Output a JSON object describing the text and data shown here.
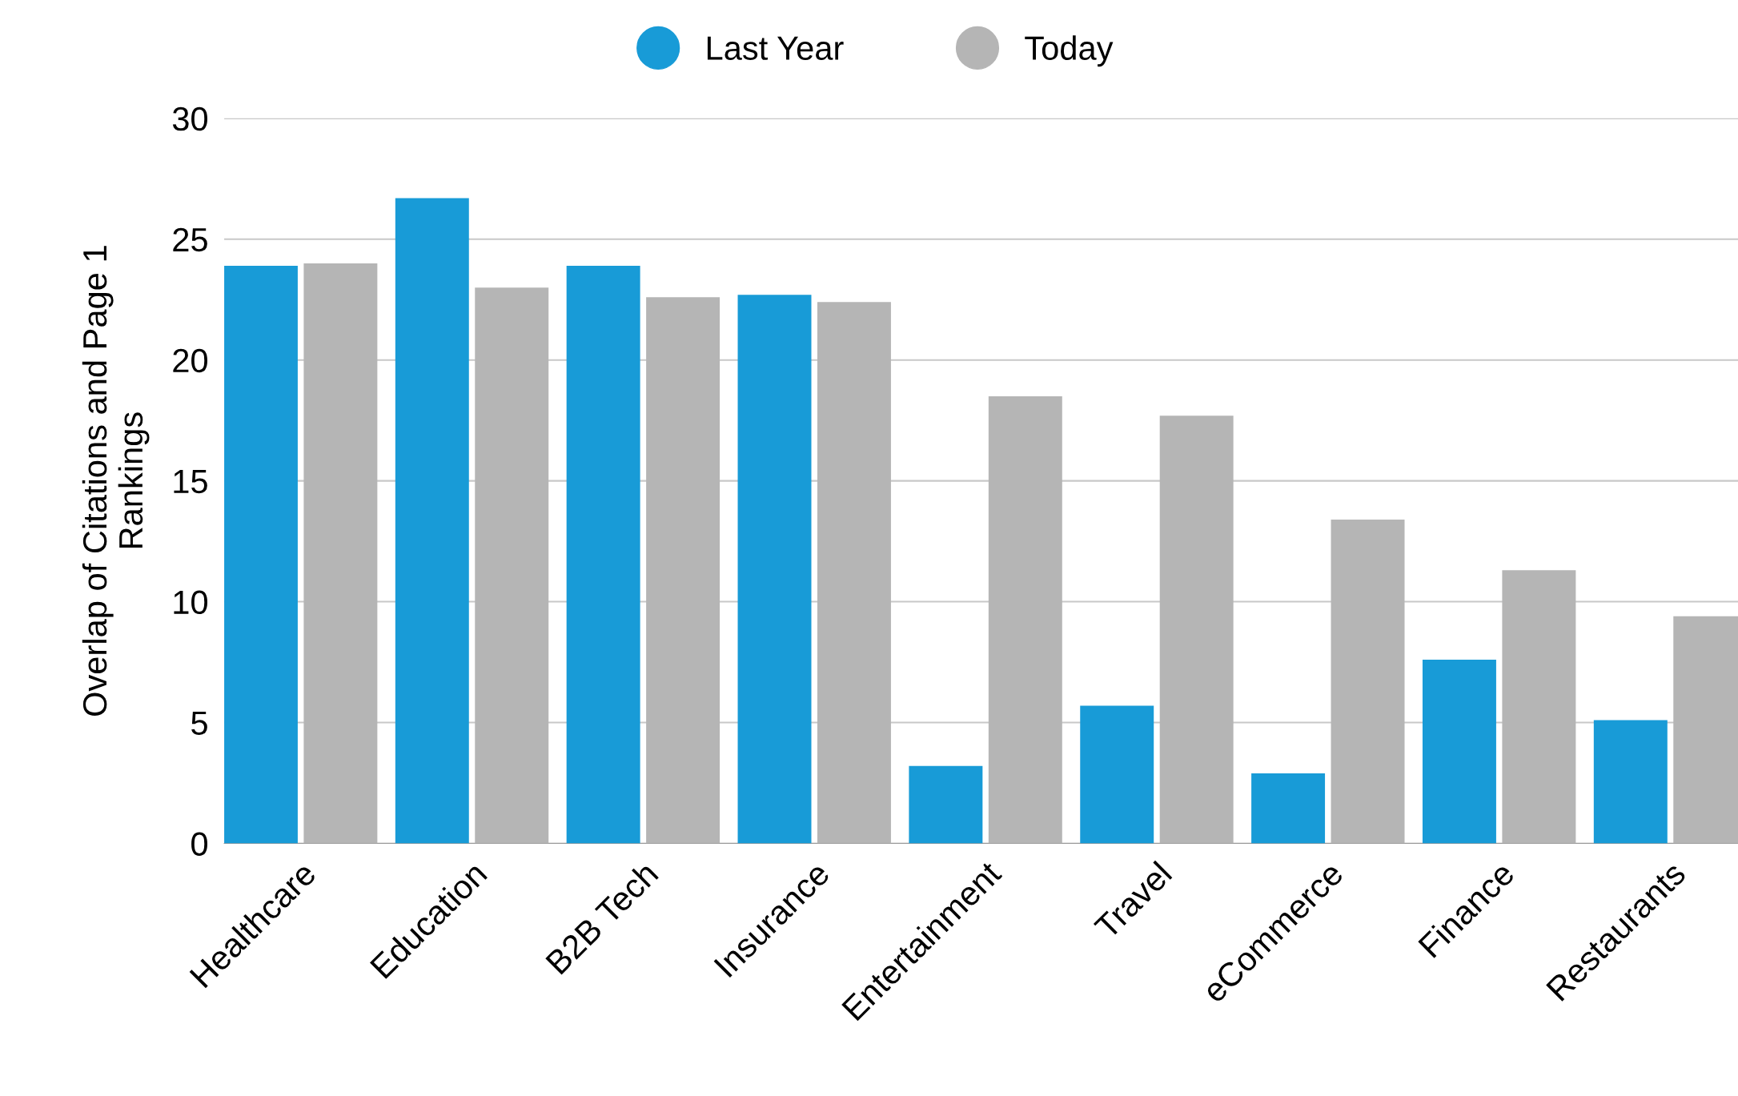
{
  "chart_data": {
    "type": "bar",
    "ylabel": "Overlap of Citations and Page 1\nRankings",
    "categories": [
      "Healthcare",
      "Education",
      "B2B Tech",
      "Insurance",
      "Entertainment",
      "Travel",
      "eCommerce",
      "Finance",
      "Restaurants"
    ],
    "series": [
      {
        "name": "Last Year",
        "color": "#189bd7",
        "values": [
          23.9,
          26.7,
          23.9,
          22.7,
          3.2,
          5.7,
          2.9,
          7.6,
          5.1
        ]
      },
      {
        "name": "Today",
        "color": "#b5b5b5",
        "values": [
          24.0,
          23.0,
          22.6,
          22.4,
          18.5,
          17.7,
          13.4,
          11.3,
          9.4
        ]
      }
    ],
    "ylim": [
      0,
      30
    ],
    "yticks": [
      0,
      5,
      10,
      15,
      20,
      25,
      30
    ],
    "grid": "y",
    "legend": "top"
  }
}
